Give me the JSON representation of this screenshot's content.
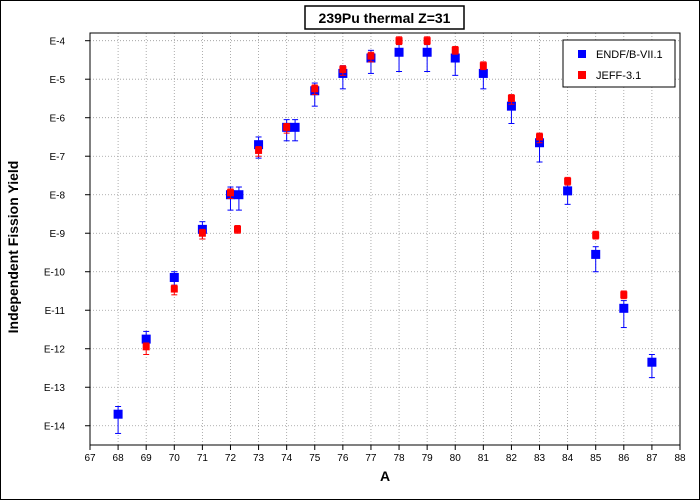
{
  "chart_data": {
    "type": "scatter",
    "title": "239Pu thermal Z=31",
    "xlabel": "A",
    "ylabel": "Independent Fission Yield",
    "xlim": [
      67,
      88
    ],
    "ylim_log10": [
      -14.5,
      -3.8
    ],
    "y_scale": "log",
    "grid": true,
    "legend_position": "top-right",
    "x_ticks": [
      67,
      68,
      69,
      70,
      71,
      72,
      73,
      74,
      75,
      76,
      77,
      78,
      79,
      80,
      81,
      82,
      83,
      84,
      85,
      86,
      87,
      88
    ],
    "y_ticks": [
      {
        "exp": -4,
        "label": "E-4"
      },
      {
        "exp": -5,
        "label": "E-5"
      },
      {
        "exp": -6,
        "label": "E-6"
      },
      {
        "exp": -7,
        "label": "E-7"
      },
      {
        "exp": -8,
        "label": "E-8"
      },
      {
        "exp": -9,
        "label": "E-9"
      },
      {
        "exp": -10,
        "label": "E-10"
      },
      {
        "exp": -11,
        "label": "E-11"
      },
      {
        "exp": -12,
        "label": "E-12"
      },
      {
        "exp": -13,
        "label": "E-13"
      },
      {
        "exp": -14,
        "label": "E-14"
      }
    ],
    "series": [
      {
        "name": "ENDF/B-VII.1",
        "color": "#0000ff",
        "marker": "square",
        "x": [
          68,
          69,
          70,
          71,
          72,
          72.3,
          73,
          74,
          74.3,
          75,
          76,
          77,
          78,
          79,
          80,
          81,
          82,
          83,
          84,
          85,
          86,
          87
        ],
        "log10y": [
          -13.7,
          -11.75,
          -10.15,
          -8.9,
          -8.0,
          -8.0,
          -6.7,
          -6.25,
          -6.25,
          -5.3,
          -4.85,
          -4.45,
          -4.3,
          -4.3,
          -4.45,
          -4.85,
          -5.7,
          -6.65,
          -7.9,
          -9.55,
          -10.95,
          -12.35
        ],
        "log10y_err_low": [
          0.5,
          0.25,
          0.2,
          0.25,
          0.4,
          0.4,
          0.35,
          0.35,
          0.35,
          0.4,
          0.4,
          0.4,
          0.5,
          0.5,
          0.45,
          0.4,
          0.45,
          0.5,
          0.35,
          0.45,
          0.5,
          0.4
        ],
        "log10y_err_high": [
          0.2,
          0.2,
          0.15,
          0.2,
          0.2,
          0.2,
          0.2,
          0.2,
          0.2,
          0.2,
          0.2,
          0.2,
          0.2,
          0.2,
          0.2,
          0.2,
          0.2,
          0.2,
          0.2,
          0.2,
          0.2,
          0.2
        ]
      },
      {
        "name": "JEFF-3.1",
        "color": "#ff0000",
        "marker": "square",
        "x": [
          69,
          70,
          71,
          72,
          72.25,
          73,
          74,
          75,
          76,
          77,
          78,
          79,
          80,
          81,
          82,
          83,
          84,
          85,
          86
        ],
        "log10y": [
          -11.95,
          -10.45,
          -9.0,
          -7.95,
          -8.9,
          -6.85,
          -6.25,
          -5.25,
          -4.75,
          -4.4,
          -4.0,
          -4.0,
          -4.25,
          -4.65,
          -5.5,
          -6.5,
          -7.65,
          -9.05,
          -10.6
        ],
        "log10y_err_low": [
          0.2,
          0.15,
          0.15,
          0.15,
          0.1,
          0.15,
          0.15,
          0.15,
          0.15,
          0.15,
          0.1,
          0.1,
          0.1,
          0.1,
          0.15,
          0.15,
          0.1,
          0.1,
          0.1
        ],
        "log10y_err_high": [
          0.1,
          0.1,
          0.1,
          0.1,
          0.1,
          0.1,
          0.1,
          0.1,
          0.1,
          0.1,
          0.1,
          0.1,
          0.1,
          0.1,
          0.1,
          0.1,
          0.1,
          0.1,
          0.1
        ]
      }
    ]
  }
}
